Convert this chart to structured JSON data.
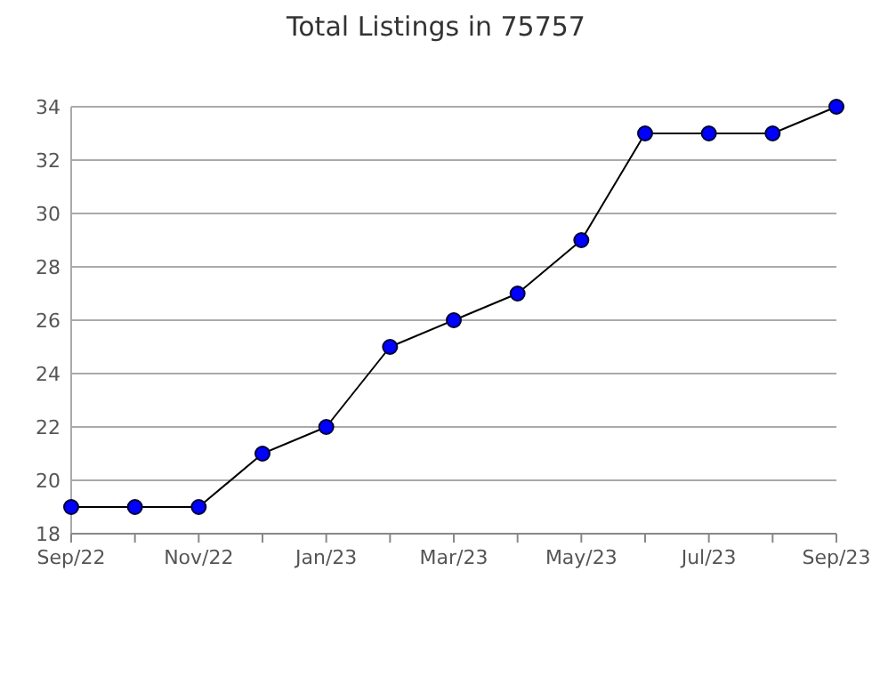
{
  "chart_data": {
    "type": "line",
    "title": "Total Listings in 75757",
    "categories": [
      "Sep/22",
      null,
      "Nov/22",
      null,
      "Jan/23",
      null,
      "Mar/23",
      null,
      "May/23",
      null,
      "Jul/23",
      null,
      "Sep/23"
    ],
    "series": [
      {
        "color": "#0000ff",
        "values": [
          19,
          19,
          19,
          21,
          22,
          25,
          26,
          27,
          29,
          33,
          33,
          33,
          34
        ]
      }
    ],
    "ylim": [
      18,
      34
    ],
    "yticks": [
      18,
      20,
      22,
      24,
      26,
      28,
      30,
      32,
      34
    ],
    "grid": "y",
    "marker": "circle",
    "line_style": "solid"
  }
}
